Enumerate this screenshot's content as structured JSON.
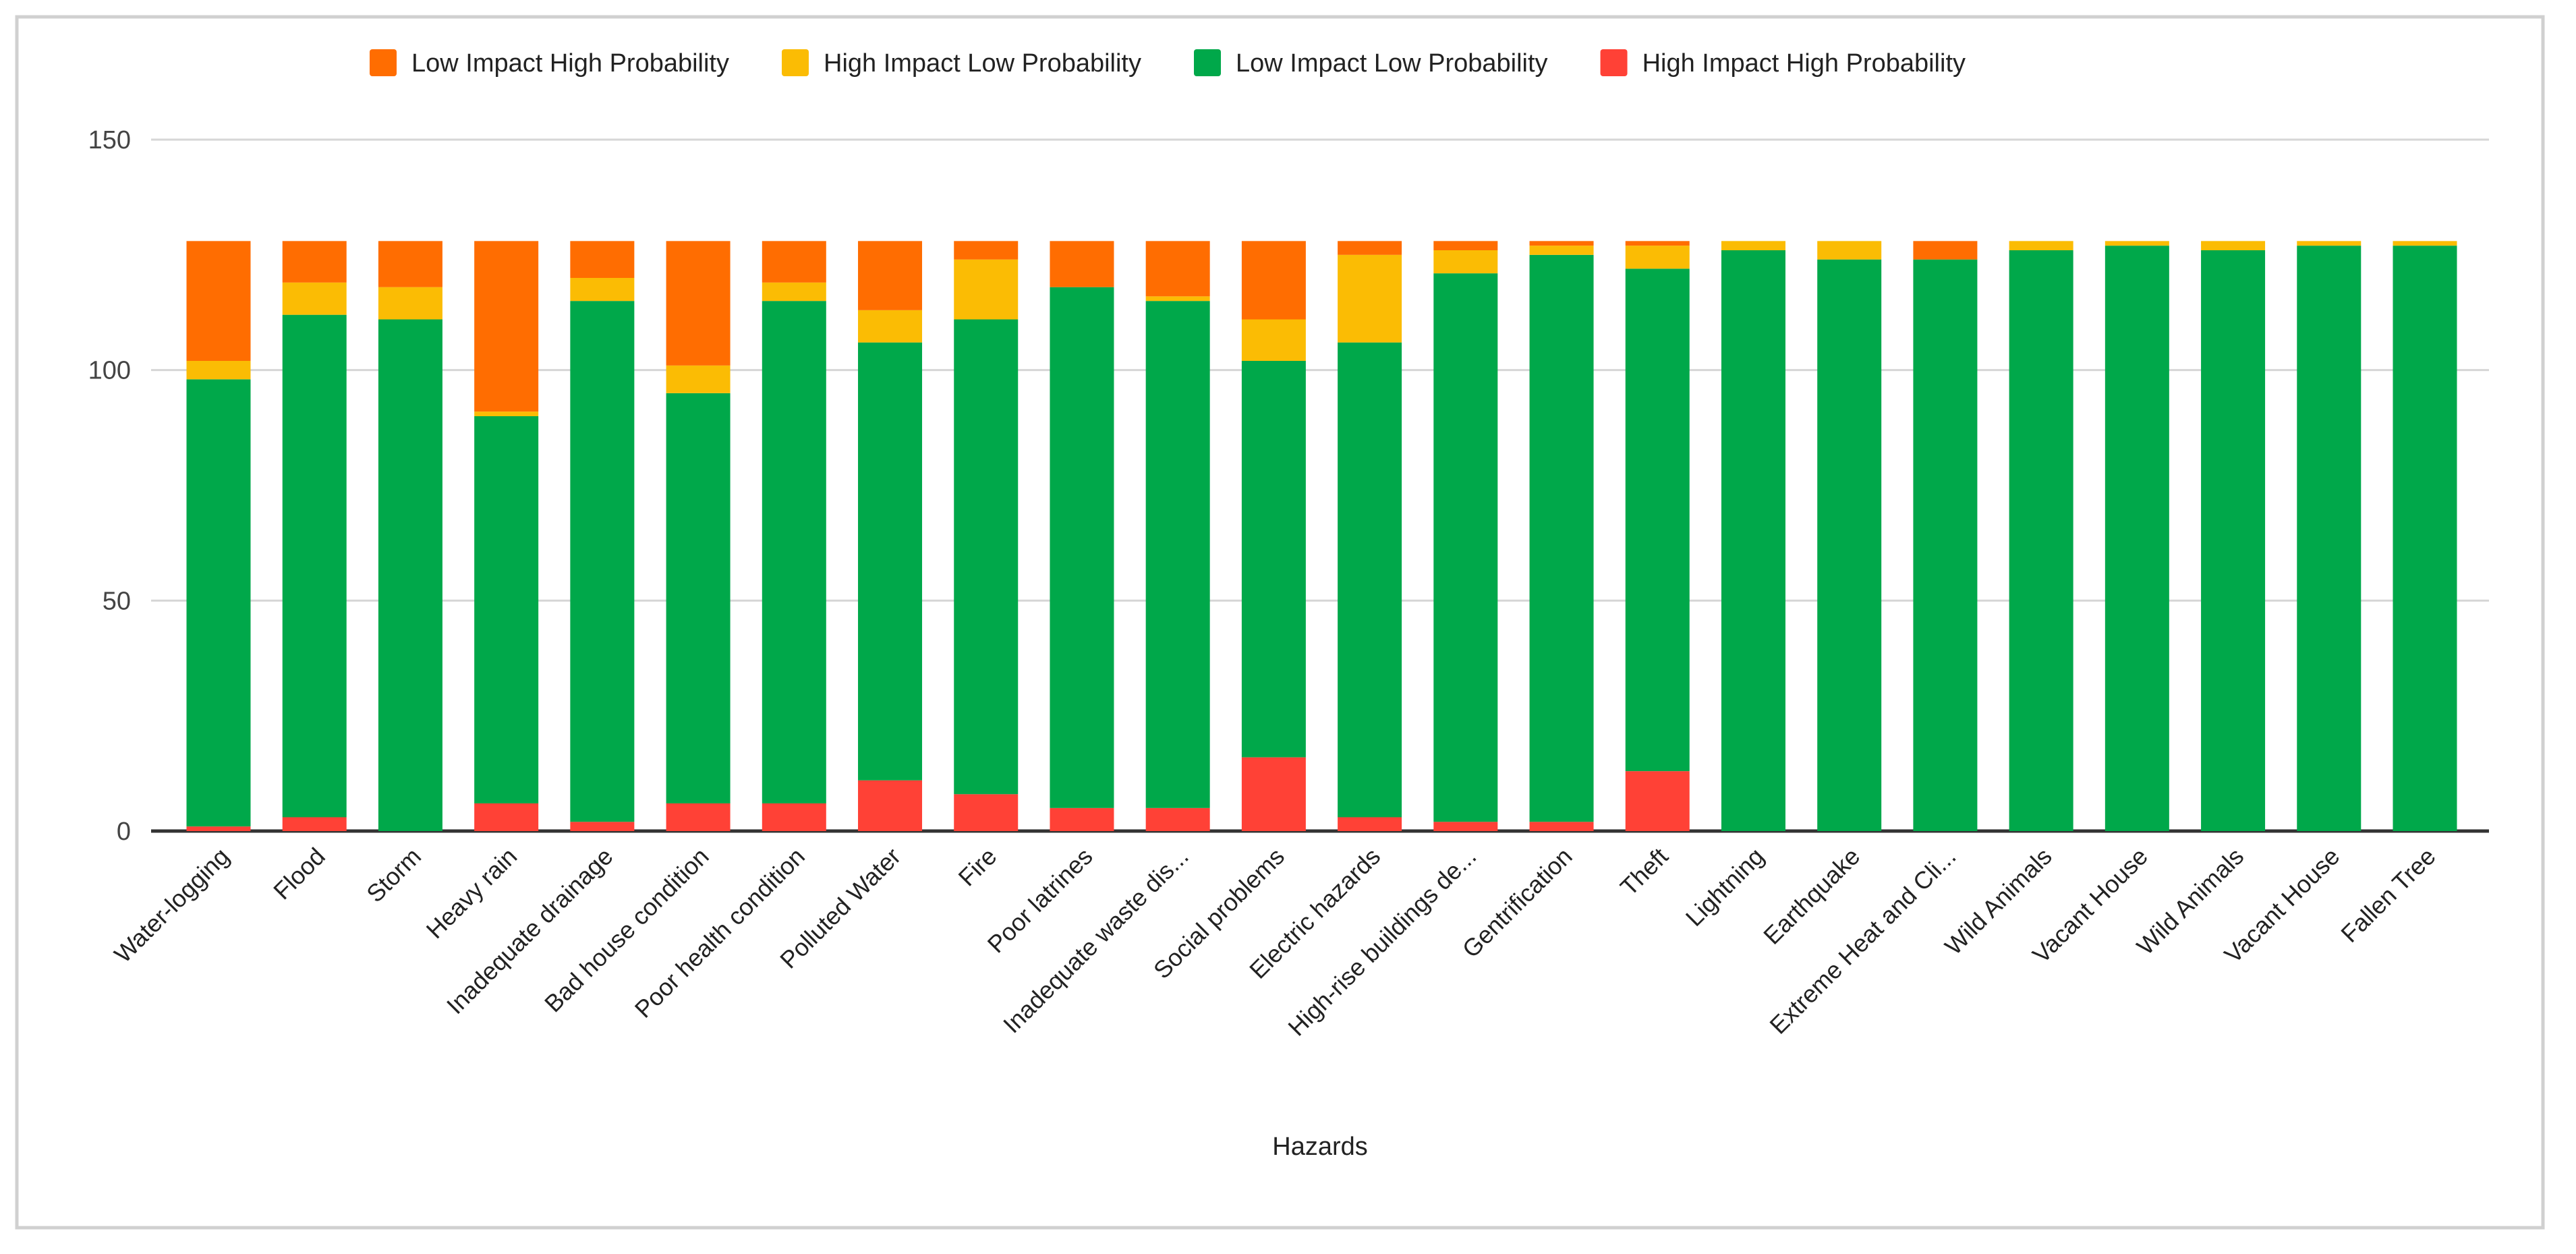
{
  "chart_data": {
    "type": "bar",
    "stacked": true,
    "title": "",
    "xlabel": "Hazards",
    "ylabel": "",
    "ylim": [
      0,
      150
    ],
    "yticks": [
      "0",
      "50",
      "100",
      "150"
    ],
    "grid": true,
    "legend_position": "top",
    "categories": [
      "Water-logging",
      "Flood",
      "Storm",
      "Heavy rain",
      "Inadequate drainage",
      "Bad house condition",
      "Poor health condition",
      "Polluted Water",
      "Fire",
      "Poor latrines",
      "Inadequate waste dis...",
      "Social problems",
      "Electric hazards",
      "High-rise buildings de...",
      "Gentrification",
      "Theft",
      "Lightning",
      "Earthquake",
      "Extreme Heat and Cli...",
      "Wild Animals",
      "Vacant House",
      "Wild Animals",
      "Vacant House",
      "Fallen Tree"
    ],
    "series": [
      {
        "name": "High Impact High Probability",
        "color": "#ff4136",
        "values": [
          1,
          3,
          0,
          6,
          2,
          6,
          6,
          11,
          8,
          5,
          5,
          16,
          3,
          2,
          2,
          13,
          0,
          0,
          0,
          0,
          0,
          0,
          0,
          0
        ]
      },
      {
        "name": "Low Impact Low Probability",
        "color": "#00a84a",
        "values": [
          97,
          109,
          111,
          84,
          113,
          89,
          109,
          95,
          103,
          113,
          110,
          86,
          103,
          119,
          123,
          109,
          126,
          124,
          124,
          126,
          127,
          126,
          127,
          127
        ]
      },
      {
        "name": "High Impact Low Probability",
        "color": "#fbbc04",
        "values": [
          4,
          7,
          7,
          1,
          5,
          6,
          4,
          7,
          13,
          0,
          1,
          9,
          19,
          5,
          2,
          5,
          2,
          4,
          0,
          2,
          1,
          2,
          1,
          1
        ]
      },
      {
        "name": "Low Impact High Probability",
        "color": "#ff6d01",
        "values": [
          26,
          9,
          10,
          37,
          8,
          27,
          9,
          15,
          4,
          10,
          12,
          17,
          3,
          2,
          1,
          1,
          0,
          0,
          4,
          0,
          0,
          0,
          0,
          0
        ]
      }
    ],
    "legend_order": [
      "Low Impact High Probability",
      "High Impact Low Probability",
      "Low Impact Low Probability",
      "High Impact High Probability"
    ]
  }
}
